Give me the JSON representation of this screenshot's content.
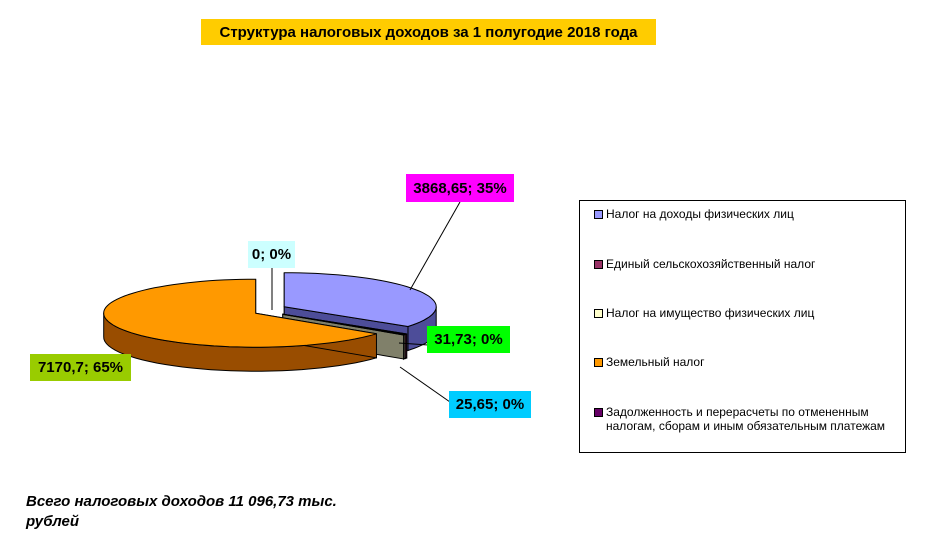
{
  "chart_data": {
    "type": "pie",
    "title": "Структура налоговых доходов за 1 полугодие 2018 года",
    "slices": [
      {
        "name": "Налог на доходы физических лиц",
        "value": 3868.65,
        "label": "3868,65; 35%",
        "color": "#9999ff",
        "side_color": "#4d4d99",
        "label_bg": "#ff00ff"
      },
      {
        "name": "Единый сельскохозяйственный налог",
        "value": 31.73,
        "label": "31,73; 0%",
        "color": "#993366",
        "side_color": "#4d1a33",
        "label_bg": "#00ff00"
      },
      {
        "name": "Налог на имущество физических лиц",
        "value": 25.65,
        "label": "25,65; 0%",
        "color": "#ffffcc",
        "side_color": "#80806a",
        "label_bg": "#00ccff"
      },
      {
        "name": "Земельный налог",
        "value": 7170.7,
        "label": "7170,7; 65%",
        "color": "#ff9900",
        "side_color": "#994d00",
        "label_bg": "#99cc00"
      },
      {
        "name": "Задолженность и перерасчеты по отмененным налогам, сборам и иным обязательным платежам",
        "value": 0,
        "label": "0; 0%",
        "color": "#660066",
        "side_color": "#330033",
        "label_bg": "#ccffff"
      }
    ],
    "legend_position": "right"
  },
  "total_text": "Всего налоговых доходов 11 096,73 тыс. рублей"
}
